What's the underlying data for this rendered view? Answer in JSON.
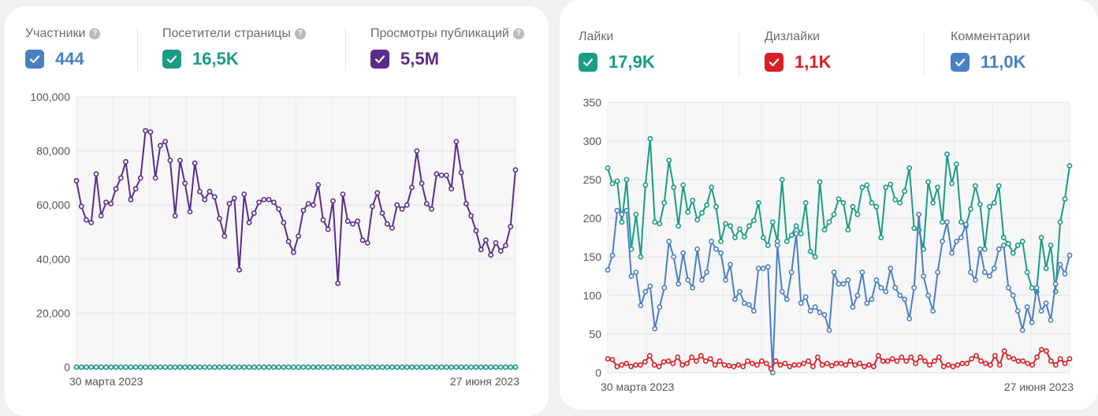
{
  "left_panel": {
    "metrics": [
      {
        "label": "Участники",
        "value": "444",
        "color": "#4a7fc1",
        "help": "?"
      },
      {
        "label": "Посетители страницы",
        "value": "16,5K",
        "color": "#1a9b84",
        "help": "?"
      },
      {
        "label": "Просмотры публикаций",
        "value": "5,5M",
        "color": "#5b2c8a",
        "help": "?"
      }
    ]
  },
  "right_panel": {
    "metrics": [
      {
        "label": "Лайки",
        "value": "17,9K",
        "color": "#1a9b84"
      },
      {
        "label": "Дизлайки",
        "value": "1,1K",
        "color": "#d81f26"
      },
      {
        "label": "Комментарии",
        "value": "11,0K",
        "color": "#4a7fc1"
      }
    ]
  },
  "chart_data": [
    {
      "type": "line",
      "ylim": [
        0,
        100000
      ],
      "yticks": [
        "0",
        "20,000",
        "40,000",
        "60,000",
        "80,000",
        "100,000"
      ],
      "xlabels": [
        "30 марта 2023",
        "27 июня 2023"
      ],
      "series": [
        {
          "name": "Просмотры публикаций",
          "color": "#5b2c8a",
          "values": [
            69000,
            59500,
            54500,
            53500,
            71500,
            56000,
            61000,
            60500,
            66000,
            70000,
            76000,
            62000,
            66000,
            70000,
            87500,
            87000,
            70000,
            82000,
            83500,
            76500,
            56000,
            76500,
            68000,
            57500,
            75500,
            65000,
            62000,
            65000,
            63000,
            55000,
            48500,
            60500,
            62500,
            36000,
            64000,
            53500,
            57000,
            61000,
            62000,
            62000,
            61000,
            58500,
            53500,
            46500,
            42500,
            48500,
            58000,
            60500,
            60000,
            67500,
            54500,
            51000,
            61500,
            31000,
            64000,
            54000,
            53000,
            54000,
            47000,
            46000,
            59500,
            64500,
            57000,
            53000,
            51500,
            60000,
            58500,
            60000,
            66500,
            80000,
            68000,
            60500,
            58500,
            71500,
            71000,
            71000,
            66000,
            83500,
            72000,
            60500,
            56000,
            50500,
            43500,
            47000,
            41500,
            46000,
            43000,
            45000,
            52000,
            73000
          ]
        },
        {
          "name": "Участники",
          "color": "#4a7fc1",
          "values": [
            0,
            0,
            0,
            0,
            0,
            0,
            0,
            0,
            0,
            0,
            0,
            0,
            0,
            0,
            0,
            0,
            0,
            0,
            0,
            0,
            0,
            0,
            0,
            0,
            0,
            0,
            0,
            0,
            0,
            0,
            0,
            0,
            0,
            0,
            0,
            0,
            0,
            0,
            0,
            0,
            0,
            0,
            0,
            0,
            0,
            0,
            0,
            0,
            0,
            0,
            0,
            0,
            0,
            0,
            0,
            0,
            0,
            0,
            0,
            0,
            0,
            0,
            0,
            0,
            0,
            0,
            0,
            0,
            0,
            0,
            0,
            0,
            0,
            0,
            0,
            0,
            0,
            0,
            0,
            0,
            0,
            0,
            0,
            0,
            0,
            0,
            0,
            0,
            0,
            0
          ]
        },
        {
          "name": "Посетители страницы",
          "color": "#1a9b84",
          "values": [
            0,
            0,
            0,
            0,
            0,
            0,
            0,
            0,
            0,
            0,
            0,
            0,
            0,
            0,
            0,
            0,
            0,
            0,
            0,
            0,
            0,
            0,
            0,
            0,
            0,
            0,
            0,
            0,
            0,
            0,
            0,
            0,
            0,
            0,
            0,
            0,
            0,
            0,
            0,
            0,
            0,
            0,
            0,
            0,
            0,
            0,
            0,
            0,
            0,
            0,
            0,
            0,
            0,
            0,
            0,
            0,
            0,
            0,
            0,
            0,
            0,
            0,
            0,
            0,
            0,
            0,
            0,
            0,
            0,
            0,
            0,
            0,
            0,
            0,
            0,
            0,
            0,
            0,
            0,
            0,
            0,
            0,
            0,
            0,
            0,
            0,
            0,
            0,
            0,
            0
          ]
        }
      ]
    },
    {
      "type": "line",
      "ylim": [
        0,
        350
      ],
      "yticks": [
        "0",
        "50",
        "100",
        "150",
        "200",
        "250",
        "300",
        "350"
      ],
      "xlabels": [
        "30 марта 2023",
        "27 июня 2023"
      ],
      "series": [
        {
          "name": "Лайки",
          "color": "#1a9b84",
          "values": [
            265,
            245,
            248,
            195,
            250,
            160,
            205,
            150,
            243,
            303,
            195,
            193,
            220,
            275,
            240,
            190,
            243,
            208,
            223,
            198,
            207,
            217,
            240,
            215,
            170,
            193,
            190,
            175,
            186,
            176,
            190,
            197,
            220,
            175,
            165,
            195,
            170,
            250,
            170,
            178,
            190,
            180,
            220,
            157,
            150,
            247,
            185,
            195,
            205,
            225,
            220,
            185,
            215,
            205,
            240,
            243,
            220,
            215,
            175,
            240,
            244,
            224,
            220,
            235,
            265,
            187,
            185,
            160,
            247,
            220,
            240,
            195,
            283,
            245,
            270,
            195,
            190,
            212,
            242,
            218,
            160,
            215,
            220,
            242,
            175,
            167,
            155,
            165,
            170,
            130,
            110,
            105,
            175,
            135,
            165,
            105,
            195,
            225,
            268
          ]
        },
        {
          "name": "Комментарии",
          "color": "#4a7fc1",
          "values": [
            133,
            152,
            210,
            205,
            210,
            125,
            130,
            87,
            105,
            112,
            57,
            85,
            110,
            170,
            150,
            115,
            155,
            120,
            110,
            160,
            120,
            130,
            170,
            160,
            155,
            120,
            140,
            95,
            105,
            90,
            88,
            80,
            135,
            135,
            137,
            0,
            165,
            105,
            95,
            130,
            180,
            90,
            98,
            80,
            85,
            78,
            75,
            55,
            130,
            115,
            115,
            120,
            85,
            100,
            130,
            90,
            95,
            120,
            110,
            105,
            135,
            110,
            100,
            95,
            70,
            110,
            205,
            125,
            100,
            80,
            130,
            170,
            195,
            155,
            170,
            175,
            192,
            130,
            120,
            160,
            130,
            125,
            135,
            160,
            165,
            110,
            100,
            80,
            55,
            85,
            65,
            110,
            80,
            90,
            68,
            115,
            140,
            128,
            152
          ]
        },
        {
          "name": "Дизлайки",
          "color": "#d81f26",
          "values": [
            18,
            17,
            8,
            10,
            12,
            8,
            10,
            10,
            14,
            22,
            10,
            8,
            14,
            15,
            12,
            20,
            10,
            12,
            20,
            15,
            22,
            15,
            18,
            10,
            15,
            10,
            9,
            8,
            10,
            8,
            15,
            12,
            10,
            15,
            12,
            5,
            15,
            10,
            12,
            8,
            10,
            10,
            12,
            15,
            8,
            20,
            10,
            12,
            9,
            12,
            12,
            10,
            15,
            10,
            12,
            8,
            10,
            8,
            22,
            15,
            15,
            18,
            15,
            20,
            15,
            20,
            12,
            20,
            15,
            10,
            15,
            20,
            8,
            10,
            8,
            10,
            12,
            12,
            18,
            22,
            15,
            12,
            10,
            22,
            10,
            28,
            20,
            18,
            15,
            15,
            12,
            10,
            20,
            30,
            28,
            15,
            10,
            18,
            12,
            18
          ]
        }
      ]
    }
  ]
}
